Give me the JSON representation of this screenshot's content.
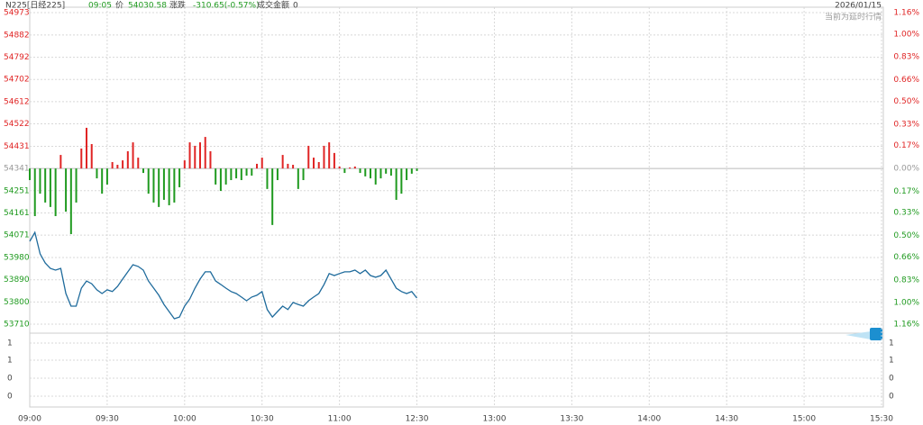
{
  "header": {
    "symbol": "N225[日经225]",
    "time": "09:05",
    "price_label": "价",
    "price": "54030.58",
    "change_label": "涨跌",
    "change": "-310.65(-0.57%)",
    "turnover_label": "成交金额",
    "turnover": "0",
    "date": "2026/01/15",
    "notice": "当前为延时行情"
  },
  "chart_data": {
    "type": "line",
    "x": [
      "09:00",
      "09:02",
      "09:04",
      "09:06",
      "09:08",
      "09:10",
      "09:12",
      "09:14",
      "09:16",
      "09:18",
      "09:20",
      "09:22",
      "09:24",
      "09:26",
      "09:28",
      "09:30",
      "09:32",
      "09:34",
      "09:36",
      "09:38",
      "09:40",
      "09:42",
      "09:44",
      "09:46",
      "09:48",
      "09:50",
      "09:52",
      "09:54",
      "09:56",
      "09:58",
      "10:00",
      "10:02",
      "10:04",
      "10:06",
      "10:08",
      "10:10",
      "10:12",
      "10:14",
      "10:16",
      "10:18",
      "10:20",
      "10:22",
      "10:24",
      "10:26",
      "10:28",
      "10:30",
      "10:32",
      "10:34",
      "10:36",
      "10:38",
      "10:40",
      "10:42",
      "10:44",
      "10:46",
      "10:48",
      "10:50",
      "10:52",
      "10:54",
      "10:56",
      "10:58",
      "11:00",
      "11:02",
      "11:04",
      "11:06",
      "11:08",
      "11:10",
      "11:12",
      "11:14",
      "11:16",
      "11:18",
      "11:20",
      "11:22",
      "11:24",
      "11:26",
      "11:28",
      "11:30"
    ],
    "series": [
      {
        "color": "#1f6b9c",
        "values": [
          54046,
          54082,
          53995,
          53958,
          53936,
          53929,
          53936,
          53834,
          53783,
          53783,
          53856,
          53885,
          53874,
          53849,
          53834,
          53849,
          53842,
          53863,
          53893,
          53922,
          53951,
          53944,
          53929,
          53885,
          53856,
          53827,
          53790,
          53761,
          53732,
          53739,
          53783,
          53812,
          53856,
          53893,
          53922,
          53922,
          53885,
          53871,
          53856,
          53842,
          53834,
          53820,
          53805,
          53820,
          53827,
          53842,
          53769,
          53739,
          53761,
          53783,
          53769,
          53798,
          53790,
          53783,
          53805,
          53820,
          53834,
          53871,
          53915,
          53907,
          53915,
          53922,
          53922,
          53929,
          53915,
          53929,
          53907,
          53900,
          53907,
          53929,
          53893,
          53856,
          53842,
          53834,
          53842,
          53816
        ]
      }
    ],
    "bars": {
      "up_color": "#e02424",
      "down_color": "#1f9a1f",
      "values": [
        54294,
        54148,
        54239,
        54203,
        54185,
        54148,
        54396,
        54166,
        54075,
        54203,
        54422,
        54506,
        54440,
        54301,
        54239,
        54276,
        54367,
        54356,
        54374,
        54411,
        54447,
        54385,
        54323,
        54239,
        54203,
        54185,
        54214,
        54192,
        54203,
        54265,
        54374,
        54447,
        54433,
        54447,
        54469,
        54411,
        54276,
        54250,
        54276,
        54294,
        54301,
        54294,
        54312,
        54312,
        54360,
        54385,
        54258,
        54112,
        54294,
        54396,
        54360,
        54356,
        54258,
        54294,
        54433,
        54385,
        54367,
        54433,
        54447,
        54404,
        54349,
        54323,
        54345,
        54349,
        54323,
        54309,
        54301,
        54276,
        54301,
        54320,
        54312,
        54214,
        54239,
        54294,
        54320,
        54331
      ]
    },
    "xlim": [
      "09:00",
      "15:30"
    ],
    "xticks": [
      "09:00",
      "09:30",
      "10:00",
      "10:30",
      "11:00",
      "12:30",
      "13:00",
      "13:30",
      "14:00",
      "14:30",
      "15:00",
      "15:30"
    ],
    "ylim": [
      53710,
      54973
    ],
    "yticks": [
      54973,
      54882,
      54792,
      54702,
      54612,
      54522,
      54431,
      54341,
      54251,
      54161,
      54071,
      53980,
      53890,
      53800,
      53710
    ],
    "y2lim": [
      -1.16,
      1.16
    ],
    "y2ticks": [
      {
        "value": 1.16,
        "label": "1.16%"
      },
      {
        "value": 1.0,
        "label": "1.00%"
      },
      {
        "value": 0.83,
        "label": "0.83%"
      },
      {
        "value": 0.66,
        "label": "0.66%"
      },
      {
        "value": 0.5,
        "label": "0.50%"
      },
      {
        "value": 0.33,
        "label": "0.33%"
      },
      {
        "value": 0.17,
        "label": "0.17%"
      },
      {
        "value": 0,
        "label": "0.00%"
      },
      {
        "value": -0.17,
        "label": "0.17%"
      },
      {
        "value": -0.33,
        "label": "0.33%"
      },
      {
        "value": -0.5,
        "label": "0.50%"
      },
      {
        "value": -0.66,
        "label": "0.66%"
      },
      {
        "value": -0.83,
        "label": "0.83%"
      },
      {
        "value": -1.0,
        "label": "1.00%"
      },
      {
        "value": -1.16,
        "label": "1.16%"
      }
    ],
    "volume_tick_labels": [
      "1",
      "1",
      "0",
      "0"
    ],
    "volume_right_tick_labels": [
      "1",
      "1",
      "0",
      "0"
    ],
    "grid": true
  }
}
